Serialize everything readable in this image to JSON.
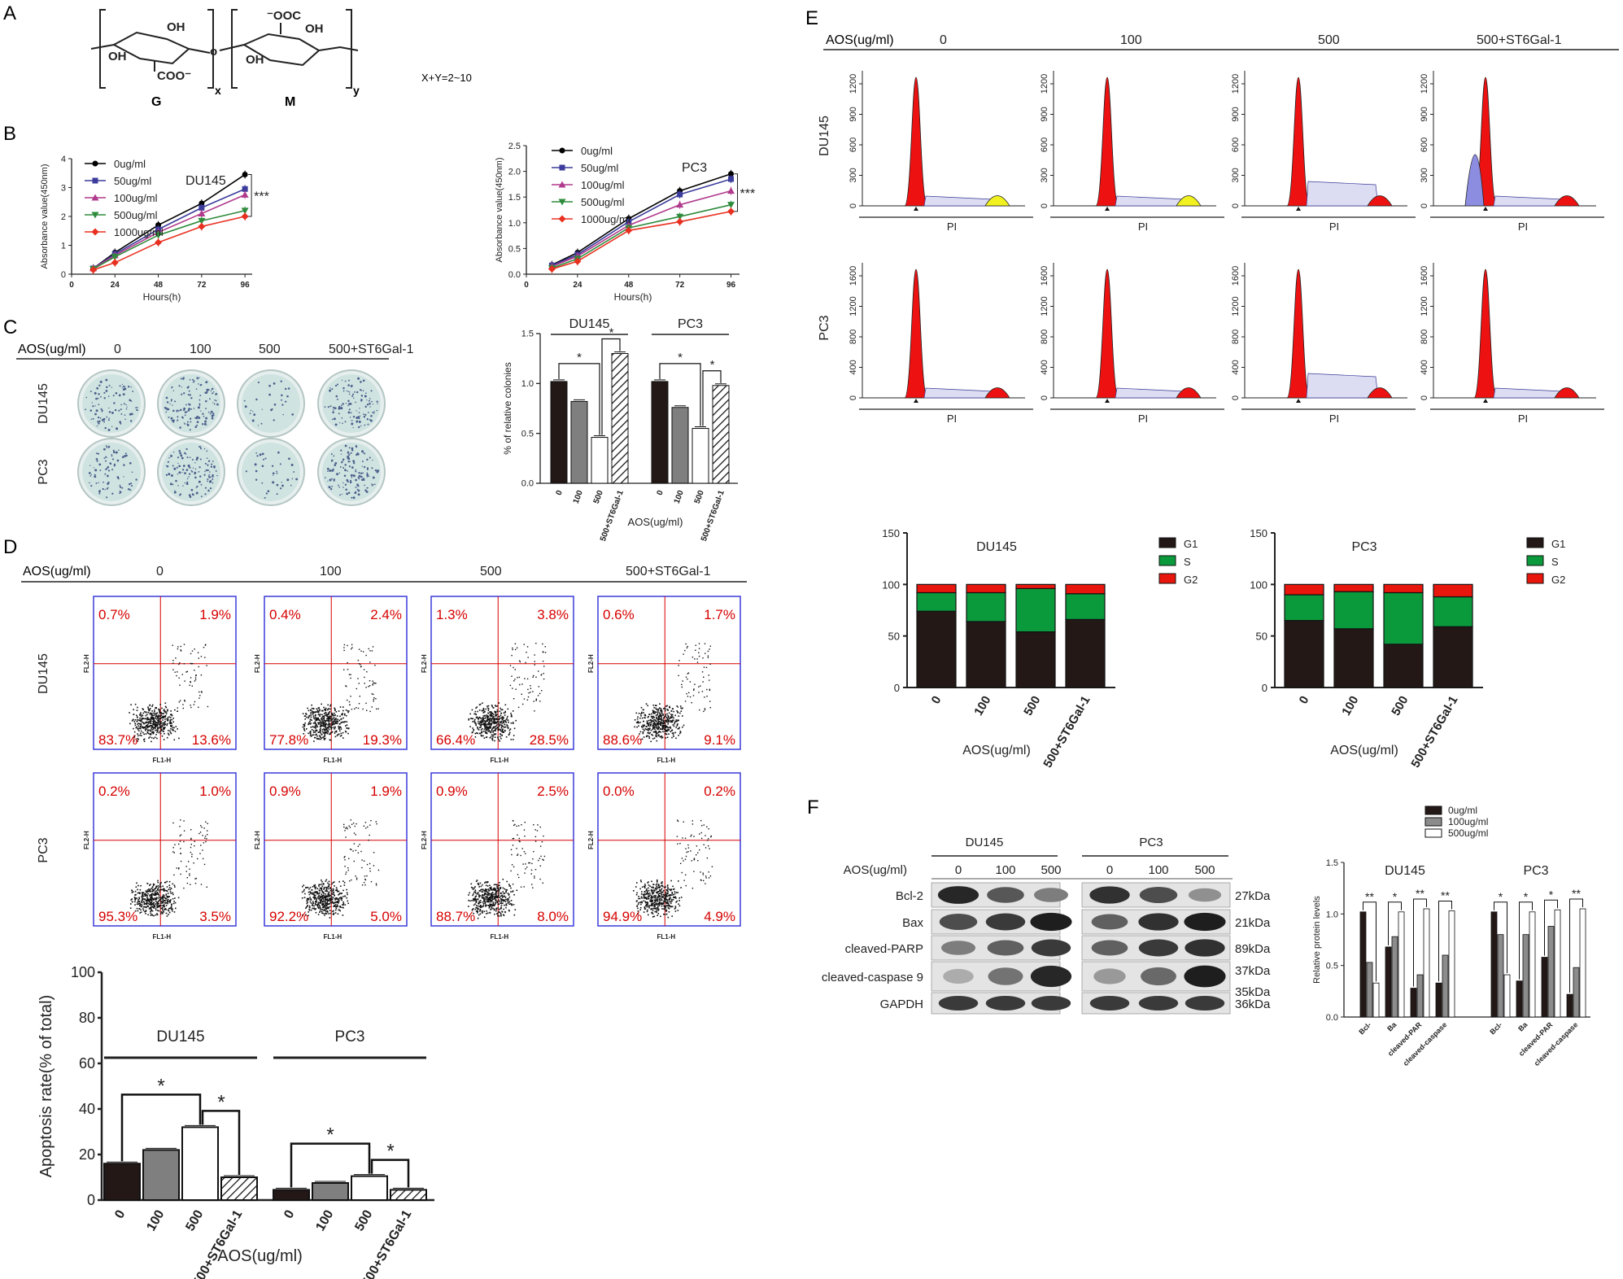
{
  "colors": {
    "black": "#231816",
    "gray": "#7f7f7f",
    "white": "#ffffff",
    "red": "#e8160c",
    "green": "#0a9a3c",
    "dot_red": "#d60000",
    "blue_box": "#3a3adb",
    "hist_red": "#ee1111",
    "hist_blue": "#8c8ce0",
    "hist_yellow": "#f1f120",
    "dish": "#cfe3e0"
  },
  "panels": {
    "A": "A",
    "B": "B",
    "C": "C",
    "D": "D",
    "E": "E",
    "F": "F"
  },
  "structure": {
    "unit_g": "G",
    "unit_m": "M",
    "sub_x": "x",
    "sub_y": "y",
    "formula": "X+Y=2~10",
    "oh1": "OH",
    "oh2": "OH",
    "oh3": "OH",
    "oh4": "OH",
    "coo": "COO⁻",
    "ooc": "⁻OOC"
  },
  "chart_data": [
    {
      "id": "B-DU145",
      "type": "line",
      "title": "DU145",
      "xlabel": "Hours(h)",
      "ylabel": "Absorbance value(450nm)",
      "x": [
        12,
        24,
        48,
        72,
        96
      ],
      "xticks": [
        0,
        24,
        48,
        72,
        96
      ],
      "ylim": [
        0,
        4
      ],
      "yticks": [
        0,
        1,
        2,
        3,
        4
      ],
      "annotation": "***",
      "series": [
        {
          "name": "0ug/ml",
          "color": "#000000",
          "marker": "circle",
          "values": [
            0.2,
            0.75,
            1.7,
            2.45,
            3.45
          ]
        },
        {
          "name": "50ug/ml",
          "color": "#3c3c9c",
          "marker": "square",
          "values": [
            0.2,
            0.7,
            1.55,
            2.3,
            2.95
          ]
        },
        {
          "name": "100ug/ml",
          "color": "#b03a8c",
          "marker": "triangle",
          "values": [
            0.2,
            0.65,
            1.45,
            2.1,
            2.75
          ]
        },
        {
          "name": "500ug/ml",
          "color": "#2e8b3c",
          "marker": "triangle-down",
          "values": [
            0.18,
            0.6,
            1.35,
            1.85,
            2.2
          ]
        },
        {
          "name": "1000ug/ml",
          "color": "#e83020",
          "marker": "diamond",
          "values": [
            0.15,
            0.4,
            1.1,
            1.65,
            2.0
          ]
        }
      ]
    },
    {
      "id": "B-PC3",
      "type": "line",
      "title": "PC3",
      "xlabel": "Hours(h)",
      "ylabel": "Absorbance value(450nm)",
      "x": [
        12,
        24,
        48,
        72,
        96
      ],
      "xticks": [
        0,
        24,
        48,
        72,
        96
      ],
      "ylim": [
        0,
        2.5
      ],
      "yticks": [
        0.0,
        0.5,
        1.0,
        1.5,
        2.0,
        2.5
      ],
      "annotation": "***",
      "series": [
        {
          "name": "0ug/ml",
          "color": "#000000",
          "marker": "circle",
          "values": [
            0.18,
            0.42,
            1.08,
            1.62,
            1.95
          ]
        },
        {
          "name": "50ug/ml",
          "color": "#3c3c9c",
          "marker": "square",
          "values": [
            0.17,
            0.38,
            1.02,
            1.55,
            1.85
          ]
        },
        {
          "name": "100ug/ml",
          "color": "#b03a8c",
          "marker": "triangle",
          "values": [
            0.15,
            0.35,
            0.95,
            1.35,
            1.62
          ]
        },
        {
          "name": "500ug/ml",
          "color": "#2e8b3c",
          "marker": "triangle-down",
          "values": [
            0.12,
            0.3,
            0.9,
            1.12,
            1.35
          ]
        },
        {
          "name": "1000ug/ml",
          "color": "#e83020",
          "marker": "diamond",
          "values": [
            0.1,
            0.25,
            0.85,
            1.02,
            1.22
          ]
        }
      ]
    },
    {
      "id": "C-colonies",
      "type": "bar",
      "ylabel": "% of relative colonies",
      "xlabel": "AOS(ug/ml)",
      "ylim": [
        0,
        1.5
      ],
      "yticks": [
        0.0,
        0.5,
        1.0,
        1.5
      ],
      "categories": [
        "0",
        "100",
        "500",
        "500+ST6Gal-1"
      ],
      "groups": [
        {
          "name": "DU145",
          "values": [
            1.02,
            0.82,
            0.46,
            1.3
          ]
        },
        {
          "name": "PC3",
          "values": [
            1.02,
            0.76,
            0.55,
            0.98
          ]
        }
      ],
      "annotation": "*"
    },
    {
      "id": "D-apoptosis",
      "type": "bar",
      "ylabel": "Apoptosis rate(% of total)",
      "xlabel": "AOS(ug/ml)",
      "ylim": [
        0,
        100
      ],
      "yticks": [
        0,
        20,
        40,
        60,
        80,
        100
      ],
      "categories": [
        "0",
        "100",
        "500",
        "500+ST6Gal-1"
      ],
      "groups": [
        {
          "name": "DU145",
          "values": [
            16,
            22,
            32,
            10
          ]
        },
        {
          "name": "PC3",
          "values": [
            4.5,
            7.5,
            10.5,
            4.5
          ]
        }
      ],
      "annotation": "*"
    },
    {
      "id": "E-cellcycle",
      "type": "bar",
      "stacked": true,
      "xlabel": "AOS(ug/ml)",
      "ylim": [
        0,
        150
      ],
      "yticks": [
        0,
        50,
        100,
        150
      ],
      "categories": [
        "0",
        "100",
        "500",
        "500+ST6Gal-1"
      ],
      "legend": [
        "G1",
        "S",
        "G2"
      ],
      "groups": [
        {
          "name": "DU145",
          "G1": [
            74,
            64,
            54,
            66
          ],
          "S": [
            18,
            28,
            42,
            25
          ],
          "G2": [
            8,
            8,
            4,
            9
          ]
        },
        {
          "name": "PC3",
          "G1": [
            65,
            57,
            42,
            59
          ],
          "S": [
            25,
            36,
            50,
            29
          ],
          "G2": [
            10,
            7,
            8,
            12
          ]
        }
      ]
    },
    {
      "id": "F-protein",
      "type": "bar",
      "ylabel": "Relative protein levels",
      "ylim": [
        0,
        1.5
      ],
      "yticks": [
        0.0,
        0.5,
        1.0,
        1.5
      ],
      "legend": [
        "0ug/ml",
        "100ug/ml",
        "500ug/ml"
      ],
      "categories": [
        "Bcl-",
        "Ba",
        "cleaved-PAR",
        "cleaved-caspase"
      ],
      "groups": [
        {
          "name": "DU145",
          "series": [
            [
              1.02,
              0.68,
              0.28,
              0.33
            ],
            [
              0.53,
              0.78,
              0.41,
              0.6
            ],
            [
              0.33,
              1.02,
              1.05,
              1.03
            ]
          ]
        },
        {
          "name": "PC3",
          "series": [
            [
              1.02,
              0.35,
              0.58,
              0.22
            ],
            [
              0.8,
              0.8,
              0.88,
              0.48
            ],
            [
              0.41,
              1.02,
              1.04,
              1.05
            ]
          ]
        }
      ],
      "annotations": [
        "**",
        "*",
        "**",
        "**",
        "*",
        "*",
        "*",
        "**"
      ]
    }
  ],
  "colony": {
    "header": "AOS(ug/ml)",
    "cols": [
      "0",
      "100",
      "500",
      "500+ST6Gal-1"
    ],
    "rows": [
      "DU145",
      "PC3"
    ],
    "density": [
      [
        90,
        130,
        30,
        110
      ],
      [
        80,
        120,
        35,
        130
      ]
    ]
  },
  "flow": {
    "header": "AOS(ug/ml)",
    "cols": [
      "0",
      "100",
      "500",
      "500+ST6Gal-1"
    ],
    "rows": [
      "DU145",
      "PC3"
    ],
    "xaxis": "FL1-H",
    "yaxis": "FL2-H",
    "quadrants": [
      [
        [
          "0.7%",
          "1.9%",
          "83.7%",
          "13.6%"
        ],
        [
          "0.4%",
          "2.4%",
          "77.8%",
          "19.3%"
        ],
        [
          "1.3%",
          "3.8%",
          "66.4%",
          "28.5%"
        ],
        [
          "0.6%",
          "1.7%",
          "88.6%",
          "9.1%"
        ]
      ],
      [
        [
          "0.2%",
          "1.0%",
          "95.3%",
          "3.5%"
        ],
        [
          "0.9%",
          "1.9%",
          "92.2%",
          "5.0%"
        ],
        [
          "0.9%",
          "2.5%",
          "88.7%",
          "8.0%"
        ],
        [
          "0.0%",
          "0.2%",
          "94.9%",
          "4.9%"
        ]
      ]
    ]
  },
  "histograms": {
    "header": "AOS(ug/ml)",
    "cols": [
      "0",
      "100",
      "500",
      "500+ST6Gal-1"
    ],
    "rows": [
      "DU145",
      "PC3"
    ],
    "xlabel": "PI",
    "yticks": [
      [
        "0",
        "300",
        "600",
        "900",
        "1200"
      ],
      [
        "0",
        "400",
        "800",
        "1200",
        "1600"
      ]
    ]
  },
  "western": {
    "header": "AOS(ug/ml)",
    "lines": [
      "DU145",
      "PC3"
    ],
    "lanes": [
      "0",
      "100",
      "500",
      "0",
      "100",
      "500"
    ],
    "proteins": [
      "Bcl-2",
      "Bax",
      "cleaved-PARP",
      "cleaved-caspase 9",
      "GAPDH"
    ],
    "sizes": [
      "27kDa",
      "21kDa",
      "89kDa",
      "37kDa",
      "36kDa"
    ],
    "extra_size": "35kDa",
    "intensity": [
      [
        0.9,
        0.65,
        0.45,
        0.85,
        0.7,
        0.35
      ],
      [
        0.7,
        0.8,
        0.95,
        0.6,
        0.85,
        0.95
      ],
      [
        0.45,
        0.6,
        0.8,
        0.6,
        0.8,
        0.85
      ],
      [
        0.2,
        0.5,
        0.9,
        0.3,
        0.55,
        0.95
      ],
      [
        0.8,
        0.8,
        0.8,
        0.8,
        0.8,
        0.8
      ]
    ]
  }
}
